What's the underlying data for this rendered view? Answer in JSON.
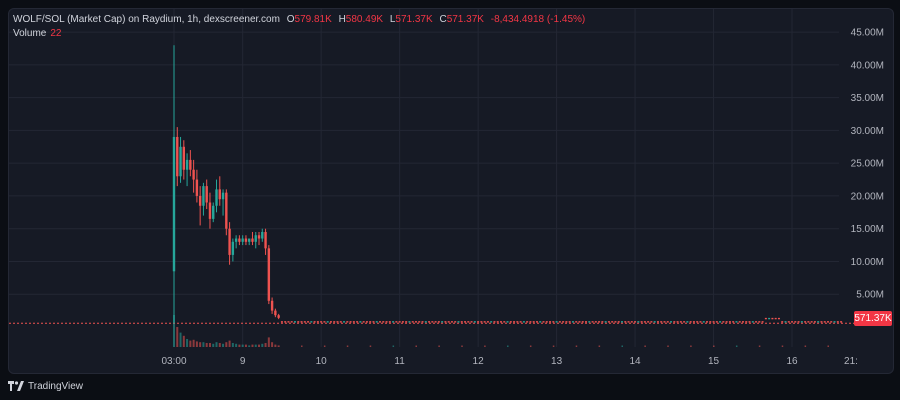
{
  "legend": {
    "title": "WOLF/SOL (Market Cap) on Raydium, 1h, dexscreener.com",
    "open_label": "O",
    "open_value": "579.81K",
    "high_label": "H",
    "high_value": "580.49K",
    "low_label": "L",
    "low_value": "571.37K",
    "close_label": "C",
    "close_value": "571.37K",
    "change": "-8,434.4918 (-1.45%)",
    "volume_label": "Volume",
    "volume_value": "22"
  },
  "price_badge": "571.37K",
  "footer": {
    "brand": "TradingView",
    "logo_icon": "tradingview-logo-icon"
  },
  "colors": {
    "up": "#26a69a",
    "down": "#ef5350",
    "badge": "#f23645",
    "grid": "#232734",
    "background": "#161a25"
  },
  "chart_data": {
    "type": "candlestick",
    "y_axis": {
      "position": "right",
      "ticks": [
        "5.00M",
        "10.00M",
        "15.00M",
        "20.00M",
        "25.00M",
        "30.00M",
        "35.00M",
        "40.00M",
        "45.00M"
      ],
      "tick_values": [
        5,
        10,
        15,
        20,
        25,
        30,
        35,
        40,
        45
      ],
      "unit": "M",
      "range": [
        0,
        47
      ]
    },
    "x_axis": {
      "ticks": [
        "03:00",
        "9",
        "10",
        "11",
        "12",
        "13",
        "14",
        "15",
        "16",
        "21:"
      ],
      "tick_hours": [
        3,
        24,
        48,
        72,
        96,
        120,
        144,
        168,
        192,
        213
      ]
    },
    "grid": true,
    "last_price_line": true,
    "candles": [
      {
        "t": 3,
        "o": 8.5,
        "h": 43.0,
        "l": 0.5,
        "c": 29.0,
        "v": 40
      },
      {
        "t": 4,
        "o": 29.0,
        "h": 30.5,
        "l": 21.5,
        "c": 23.0,
        "v": 25
      },
      {
        "t": 5,
        "o": 23.0,
        "h": 29.0,
        "l": 22.0,
        "c": 27.5,
        "v": 18
      },
      {
        "t": 6,
        "o": 27.5,
        "h": 28.5,
        "l": 22.5,
        "c": 24.0,
        "v": 14
      },
      {
        "t": 7,
        "o": 24.0,
        "h": 26.5,
        "l": 21.5,
        "c": 25.5,
        "v": 10
      },
      {
        "t": 8,
        "o": 25.5,
        "h": 27.0,
        "l": 23.0,
        "c": 24.0,
        "v": 8
      },
      {
        "t": 9,
        "o": 24.0,
        "h": 25.5,
        "l": 20.5,
        "c": 22.5,
        "v": 9
      },
      {
        "t": 10,
        "o": 22.5,
        "h": 24.0,
        "l": 19.0,
        "c": 20.0,
        "v": 7
      },
      {
        "t": 11,
        "o": 20.0,
        "h": 21.5,
        "l": 15.5,
        "c": 18.5,
        "v": 6
      },
      {
        "t": 12,
        "o": 18.5,
        "h": 22.0,
        "l": 17.0,
        "c": 21.5,
        "v": 6
      },
      {
        "t": 13,
        "o": 21.5,
        "h": 22.5,
        "l": 18.0,
        "c": 19.0,
        "v": 5
      },
      {
        "t": 14,
        "o": 19.0,
        "h": 20.5,
        "l": 15.0,
        "c": 16.5,
        "v": 5
      },
      {
        "t": 15,
        "o": 16.5,
        "h": 19.0,
        "l": 16.0,
        "c": 18.5,
        "v": 4
      },
      {
        "t": 16,
        "o": 18.5,
        "h": 22.5,
        "l": 17.5,
        "c": 21.0,
        "v": 6
      },
      {
        "t": 17,
        "o": 21.0,
        "h": 23.0,
        "l": 18.5,
        "c": 19.5,
        "v": 5
      },
      {
        "t": 18,
        "o": 19.5,
        "h": 21.0,
        "l": 17.0,
        "c": 20.5,
        "v": 4
      },
      {
        "t": 19,
        "o": 20.5,
        "h": 21.0,
        "l": 14.0,
        "c": 15.0,
        "v": 6
      },
      {
        "t": 20,
        "o": 15.0,
        "h": 16.0,
        "l": 9.5,
        "c": 11.0,
        "v": 8
      },
      {
        "t": 21,
        "o": 11.0,
        "h": 13.5,
        "l": 10.0,
        "c": 13.0,
        "v": 5
      },
      {
        "t": 22,
        "o": 13.0,
        "h": 14.0,
        "l": 12.0,
        "c": 13.5,
        "v": 4
      },
      {
        "t": 23,
        "o": 13.5,
        "h": 14.0,
        "l": 12.5,
        "c": 13.0,
        "v": 3
      },
      {
        "t": 24,
        "o": 13.0,
        "h": 14.0,
        "l": 12.5,
        "c": 13.5,
        "v": 3
      },
      {
        "t": 25,
        "o": 13.5,
        "h": 14.0,
        "l": 12.5,
        "c": 13.0,
        "v": 3
      },
      {
        "t": 26,
        "o": 13.0,
        "h": 13.5,
        "l": 12.5,
        "c": 13.5,
        "v": 2
      },
      {
        "t": 27,
        "o": 13.5,
        "h": 14.5,
        "l": 12.5,
        "c": 13.0,
        "v": 3
      },
      {
        "t": 28,
        "o": 13.0,
        "h": 14.5,
        "l": 12.0,
        "c": 14.0,
        "v": 3
      },
      {
        "t": 29,
        "o": 14.0,
        "h": 14.5,
        "l": 12.5,
        "c": 13.5,
        "v": 3
      },
      {
        "t": 30,
        "o": 13.5,
        "h": 15.0,
        "l": 13.0,
        "c": 14.5,
        "v": 4
      },
      {
        "t": 31,
        "o": 14.5,
        "h": 15.0,
        "l": 11.0,
        "c": 12.0,
        "v": 5
      },
      {
        "t": 32,
        "o": 12.0,
        "h": 12.5,
        "l": 3.5,
        "c": 4.0,
        "v": 12
      },
      {
        "t": 33,
        "o": 4.0,
        "h": 4.5,
        "l": 2.0,
        "c": 2.5,
        "v": 6
      },
      {
        "t": 34,
        "o": 2.5,
        "h": 2.8,
        "l": 1.5,
        "c": 1.8,
        "v": 3
      },
      {
        "t": 35,
        "o": 1.8,
        "h": 2.0,
        "l": 1.2,
        "c": 1.4,
        "v": 2
      }
    ],
    "tail": {
      "from_hour": 36,
      "to_hour": 207,
      "level": 0.8,
      "bump_hour": 186,
      "bump_level": 1.3,
      "last_value": 0.57137
    }
  }
}
